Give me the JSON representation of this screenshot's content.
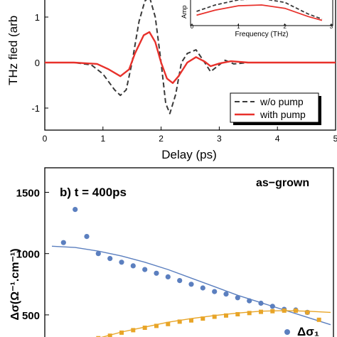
{
  "chart_data": [
    {
      "type": "line",
      "title": "",
      "xlabel": "Delay (ps)",
      "ylabel": "THz fied (arb",
      "xlim": [
        0,
        5
      ],
      "ylim": [
        -1.5,
        1.5
      ],
      "x_ticks": [
        "0",
        "1",
        "2",
        "3",
        "4",
        "5"
      ],
      "y_ticks": [
        "1",
        "0",
        "-1"
      ],
      "legend_position": "bottom-right",
      "series": [
        {
          "name": "w/o pump",
          "color": "#3a3a3a",
          "style": "dashed",
          "points": [
            [
              0,
              0
            ],
            [
              0.5,
              0
            ],
            [
              0.8,
              -0.05
            ],
            [
              1.0,
              -0.25
            ],
            [
              1.2,
              -0.6
            ],
            [
              1.3,
              -0.72
            ],
            [
              1.4,
              -0.6
            ],
            [
              1.5,
              0.0
            ],
            [
              1.62,
              0.9
            ],
            [
              1.72,
              1.35
            ],
            [
              1.8,
              1.45
            ],
            [
              1.9,
              1.0
            ],
            [
              2.0,
              0.0
            ],
            [
              2.08,
              -0.9
            ],
            [
              2.15,
              -1.12
            ],
            [
              2.25,
              -0.7
            ],
            [
              2.35,
              0.0
            ],
            [
              2.45,
              0.2
            ],
            [
              2.6,
              0.28
            ],
            [
              2.75,
              0.0
            ],
            [
              2.85,
              -0.2
            ],
            [
              3.0,
              -0.05
            ],
            [
              3.1,
              0.05
            ],
            [
              3.25,
              -0.03
            ],
            [
              3.5,
              0.0
            ],
            [
              4.0,
              0.0
            ],
            [
              5.0,
              0.0
            ]
          ]
        },
        {
          "name": "with pump",
          "color": "#e8312b",
          "style": "solid",
          "points": [
            [
              0,
              0
            ],
            [
              0.5,
              0
            ],
            [
              0.9,
              -0.03
            ],
            [
              1.1,
              -0.15
            ],
            [
              1.3,
              -0.3
            ],
            [
              1.45,
              -0.15
            ],
            [
              1.55,
              0.2
            ],
            [
              1.7,
              0.6
            ],
            [
              1.8,
              0.67
            ],
            [
              1.9,
              0.45
            ],
            [
              2.0,
              0.0
            ],
            [
              2.1,
              -0.35
            ],
            [
              2.2,
              -0.45
            ],
            [
              2.3,
              -0.3
            ],
            [
              2.45,
              0.0
            ],
            [
              2.6,
              0.12
            ],
            [
              2.75,
              0.02
            ],
            [
              2.85,
              -0.08
            ],
            [
              3.0,
              -0.02
            ],
            [
              3.2,
              0.03
            ],
            [
              3.5,
              0.0
            ],
            [
              5.0,
              0.0
            ]
          ]
        }
      ]
    },
    {
      "type": "line",
      "title": "",
      "xlabel": "Frequency (THz)",
      "ylabel": "Amp",
      "xlim": [
        0,
        3
      ],
      "x_ticks": [
        "0",
        "1",
        "2",
        "3"
      ],
      "series": [
        {
          "name": "w/o pump",
          "color": "#3a3a3a",
          "style": "dashed",
          "points": [
            [
              0.1,
              0.5
            ],
            [
              0.5,
              0.75
            ],
            [
              1.0,
              0.95
            ],
            [
              1.5,
              1.0
            ],
            [
              2.0,
              0.85
            ],
            [
              2.5,
              0.4
            ],
            [
              2.8,
              0.2
            ]
          ]
        },
        {
          "name": "with pump",
          "color": "#e8312b",
          "style": "solid",
          "points": [
            [
              0.1,
              0.35
            ],
            [
              0.5,
              0.55
            ],
            [
              1.0,
              0.72
            ],
            [
              1.5,
              0.75
            ],
            [
              2.0,
              0.62
            ],
            [
              2.5,
              0.3
            ],
            [
              2.8,
              0.15
            ]
          ]
        }
      ]
    },
    {
      "type": "scatter",
      "title": "",
      "panel_label": "b) t = 400ps",
      "annotation": "as−grown",
      "ylabel": "Δσ(Ω⁻¹.cm⁻¹)",
      "ylim": [
        250,
        1700
      ],
      "y_ticks": [
        "1500",
        "1000",
        "500"
      ],
      "legend_label": "Δσ₁",
      "series": [
        {
          "name": "",
          "color": "#5b7fbf",
          "marker": "circle",
          "points": [
            [
              1,
              1090
            ],
            [
              2,
              1360
            ],
            [
              3,
              1140
            ],
            [
              4,
              1000
            ],
            [
              5,
              960
            ],
            [
              6,
              930
            ],
            [
              7,
              900
            ],
            [
              8,
              870
            ],
            [
              9,
              840
            ],
            [
              10,
              810
            ],
            [
              11,
              780
            ],
            [
              12,
              750
            ],
            [
              13,
              720
            ],
            [
              14,
              690
            ],
            [
              15,
              670
            ],
            [
              16,
              640
            ],
            [
              17,
              615
            ],
            [
              18,
              595
            ],
            [
              19,
              570
            ],
            [
              20,
              545
            ],
            [
              21,
              540
            ],
            [
              22,
              520
            ]
          ]
        },
        {
          "name": "",
          "color": "#5b7fbf",
          "style": "fit",
          "points": [
            [
              0,
              1060
            ],
            [
              2,
              1050
            ],
            [
              4,
              1020
            ],
            [
              6,
              980
            ],
            [
              8,
              930
            ],
            [
              10,
              870
            ],
            [
              12,
              800
            ],
            [
              14,
              730
            ],
            [
              16,
              660
            ],
            [
              18,
              600
            ],
            [
              20,
              540
            ],
            [
              22,
              480
            ],
            [
              24,
              420
            ]
          ]
        },
        {
          "name": "Δσ₁",
          "color": "#e8a528",
          "marker": "square",
          "points": [
            [
              3,
              290
            ],
            [
              4,
              310
            ],
            [
              5,
              330
            ],
            [
              6,
              355
            ],
            [
              7,
              375
            ],
            [
              8,
              395
            ],
            [
              9,
              410
            ],
            [
              10,
              425
            ],
            [
              11,
              445
            ],
            [
              12,
              455
            ],
            [
              13,
              470
            ],
            [
              14,
              485
            ],
            [
              15,
              495
            ],
            [
              16,
              505
            ],
            [
              17,
              515
            ],
            [
              18,
              525
            ],
            [
              19,
              530
            ],
            [
              20,
              535
            ],
            [
              21,
              535
            ],
            [
              22,
              520
            ],
            [
              23,
              460
            ]
          ]
        },
        {
          "name": "",
          "color": "#e8a528",
          "style": "fit",
          "points": [
            [
              2,
              260
            ],
            [
              4,
              310
            ],
            [
              6,
              360
            ],
            [
              8,
              400
            ],
            [
              10,
              440
            ],
            [
              12,
              470
            ],
            [
              14,
              495
            ],
            [
              16,
              515
            ],
            [
              18,
              530
            ],
            [
              20,
              535
            ],
            [
              22,
              530
            ],
            [
              24,
              520
            ]
          ]
        }
      ]
    }
  ]
}
